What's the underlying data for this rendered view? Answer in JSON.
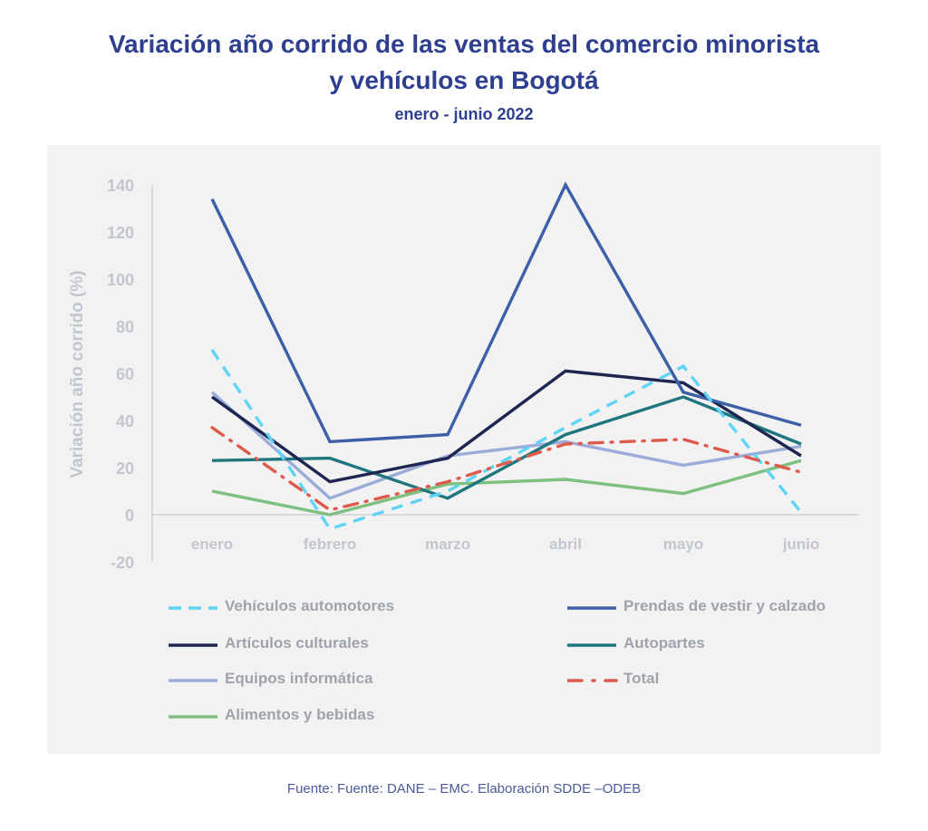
{
  "title_line1": "Variación año corrido de las ventas del comercio minorista",
  "title_line2": "y vehículos en Bogotá",
  "subtitle": "enero - junio 2022",
  "source": "Fuente: Fuente: DANE – EMC. Elaboración SDDE –ODEB",
  "chart_data": {
    "type": "line",
    "title": "Variación año corrido de las ventas del comercio minorista y vehículos en Bogotá",
    "subtitle": "enero - junio 2022",
    "xlabel": "",
    "ylabel": "Variación año corrido (%)",
    "ylim": [
      -20,
      140
    ],
    "yticks": [
      140,
      120,
      100,
      80,
      60,
      40,
      20,
      0,
      -20
    ],
    "categories": [
      "enero",
      "febrero",
      "marzo",
      "abril",
      "mayo",
      "junio"
    ],
    "grid": false,
    "legend_position": "bottom",
    "series": [
      {
        "name": "Vehículos automotores",
        "values": [
          70,
          -6,
          10,
          37,
          63,
          1
        ],
        "color": "#5fd4f4",
        "style": "dashed"
      },
      {
        "name": "Prendas de vestir y calzado",
        "values": [
          134,
          31,
          34,
          140,
          52,
          38
        ],
        "color": "#3d5fa8",
        "style": "solid"
      },
      {
        "name": "Artículos culturales",
        "values": [
          50,
          14,
          24,
          61,
          56,
          25
        ],
        "color": "#1d2550",
        "style": "solid"
      },
      {
        "name": "Autopartes",
        "values": [
          23,
          24,
          7,
          34,
          50,
          30
        ],
        "color": "#20767e",
        "style": "solid"
      },
      {
        "name": "Equipos informática",
        "values": [
          52,
          7,
          25,
          31,
          21,
          29
        ],
        "color": "#9bacd9",
        "style": "solid"
      },
      {
        "name": "Total",
        "values": [
          37,
          2,
          14,
          30,
          32,
          18
        ],
        "color": "#de5a4c",
        "style": "dashdot"
      },
      {
        "name": "Alimentos y bebidas",
        "values": [
          10,
          0,
          13,
          15,
          9,
          23
        ],
        "color": "#7dc07f",
        "style": "solid"
      }
    ]
  }
}
